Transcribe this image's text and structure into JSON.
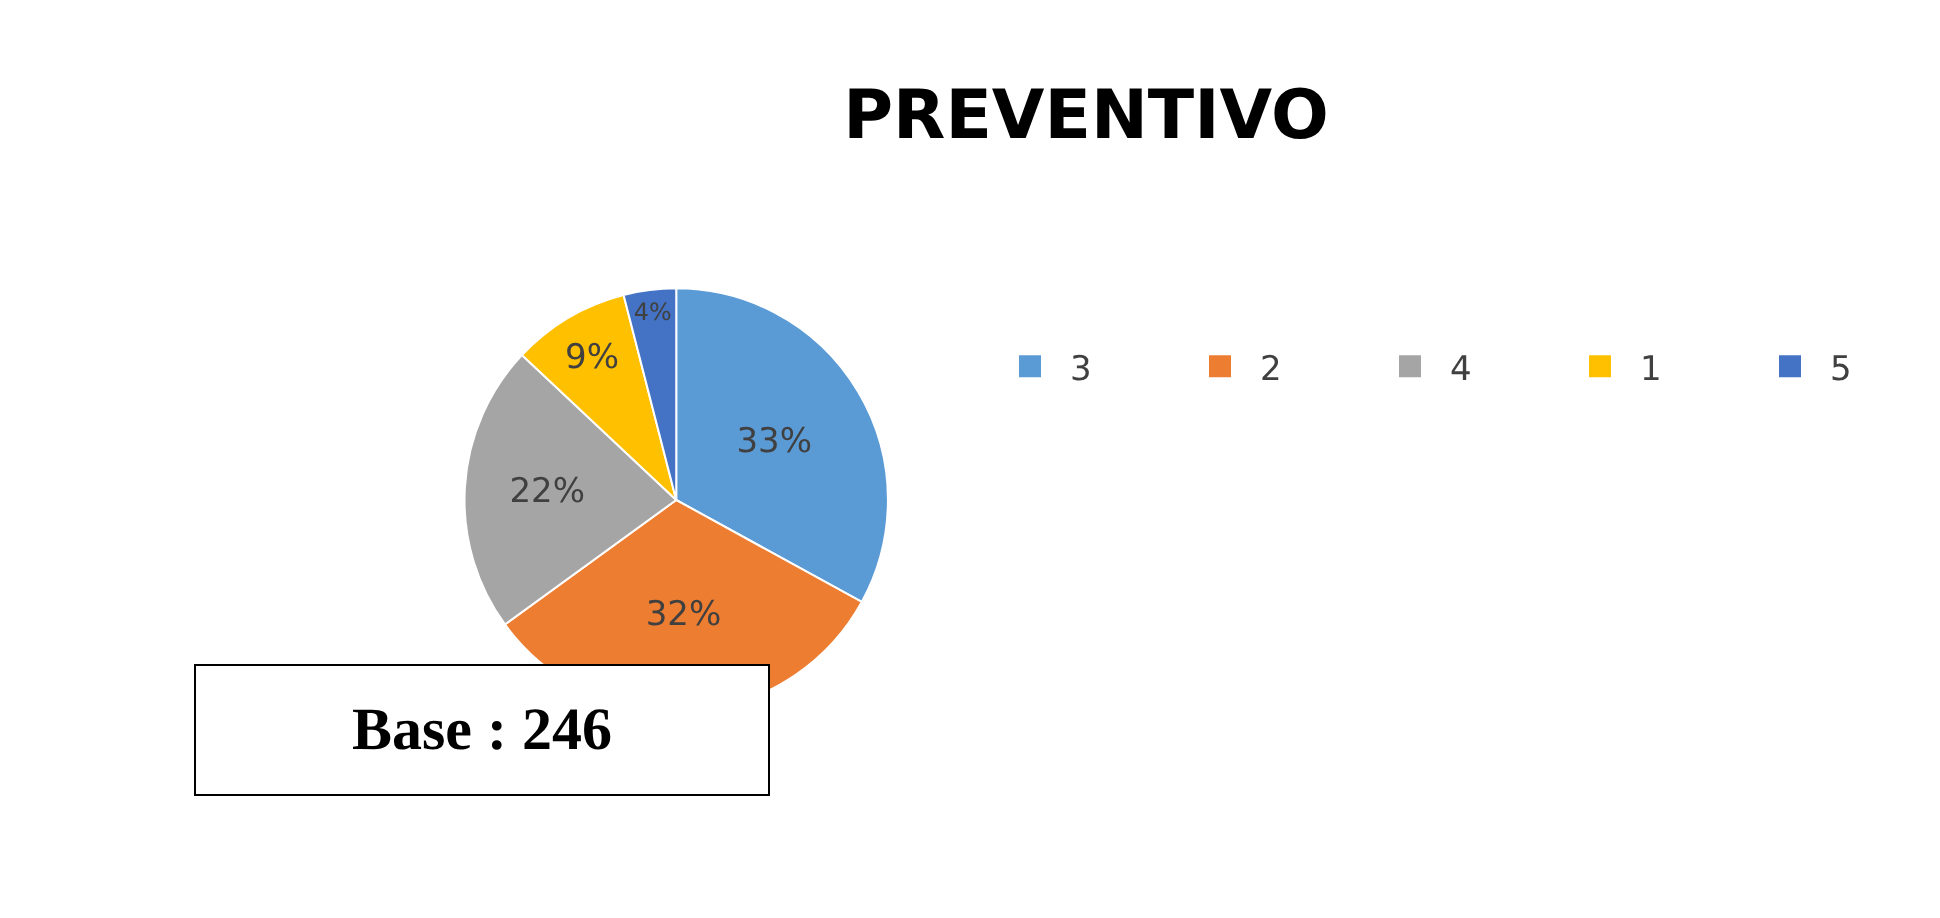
{
  "chart_data": {
    "type": "pie",
    "title": "PREVENTIVO",
    "categories": [
      "3",
      "2",
      "4",
      "1",
      "5"
    ],
    "values": [
      33,
      32,
      22,
      9,
      4
    ],
    "value_labels": [
      "33%",
      "32%",
      "22%",
      "9%",
      "4%"
    ],
    "colors": [
      "#5b9bd5",
      "#ed7d31",
      "#a5a5a5",
      "#ffc000",
      "#4472c4"
    ],
    "legend": "right",
    "annotations": [
      "Base : 246"
    ]
  }
}
